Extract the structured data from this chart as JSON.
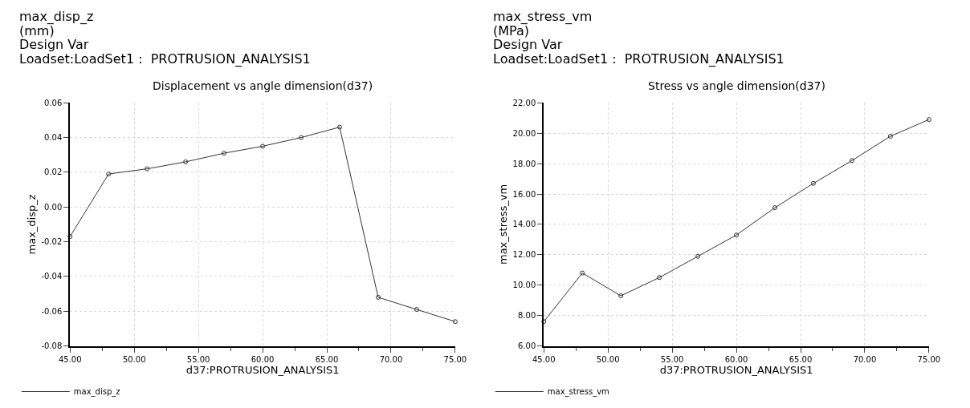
{
  "chart_data": [
    {
      "type": "line",
      "title": "Displacement vs angle dimension(d37)",
      "xlabel": "d37:PROTRUSION_ANALYSIS1",
      "ylabel": "max_disp_z",
      "annotations": [
        "max_disp_z",
        "(mm)",
        "Design Var",
        "Loadset:LoadSet1 :  PROTRUSION_ANALYSIS1"
      ],
      "x": [
        45,
        48,
        51,
        54,
        57,
        60,
        63,
        66,
        69,
        72,
        75
      ],
      "series": [
        {
          "name": "max_disp_z",
          "color": "#333333",
          "values": [
            -0.017,
            0.019,
            0.022,
            0.026,
            0.031,
            0.035,
            0.04,
            0.046,
            -0.052,
            -0.059,
            -0.066
          ]
        }
      ],
      "xlim": [
        45,
        75
      ],
      "ylim": [
        -0.08,
        0.06
      ],
      "xticks": [
        {
          "value": 45,
          "label": "45.00"
        },
        {
          "value": 50,
          "label": "50.00"
        },
        {
          "value": 55,
          "label": "55.00"
        },
        {
          "value": 60,
          "label": "60.00"
        },
        {
          "value": 65,
          "label": "65.00"
        },
        {
          "value": 70,
          "label": "70.00"
        },
        {
          "value": 75,
          "label": "75.00"
        }
      ],
      "yticks": [
        {
          "value": -0.08,
          "label": "-0.08"
        },
        {
          "value": -0.06,
          "label": "-0.06"
        },
        {
          "value": -0.04,
          "label": "-0.04"
        },
        {
          "value": -0.02,
          "label": "-0.02"
        },
        {
          "value": 0,
          "label": "0.00"
        },
        {
          "value": 0.02,
          "label": "0.02"
        },
        {
          "value": 0.04,
          "label": "0.04"
        },
        {
          "value": 0.06,
          "label": "0.06"
        }
      ],
      "grid": true,
      "legend": "bottom left",
      "marker": "circle",
      "line_style": "solid"
    },
    {
      "type": "line",
      "title": "Stress vs angle dimension(d37)",
      "xlabel": "d37:PROTRUSION_ANALYSIS1",
      "ylabel": "max_stress_vm",
      "annotations": [
        "max_stress_vm",
        "(MPa)",
        "Design Var",
        "Loadset:LoadSet1 :  PROTRUSION_ANALYSIS1"
      ],
      "x": [
        45,
        48,
        51,
        54,
        57,
        60,
        63,
        66,
        69,
        72,
        75
      ],
      "series": [
        {
          "name": "max_stress_vm",
          "color": "#333333",
          "values": [
            7.6,
            10.8,
            9.3,
            10.5,
            11.9,
            13.3,
            15.1,
            16.7,
            18.2,
            19.8,
            20.9
          ]
        }
      ],
      "xlim": [
        45,
        75
      ],
      "ylim": [
        6,
        22
      ],
      "xticks": [
        {
          "value": 45,
          "label": "45.00"
        },
        {
          "value": 50,
          "label": "50.00"
        },
        {
          "value": 55,
          "label": "55.00"
        },
        {
          "value": 60,
          "label": "60.00"
        },
        {
          "value": 65,
          "label": "65.00"
        },
        {
          "value": 70,
          "label": "70.00"
        },
        {
          "value": 75,
          "label": "75.00"
        }
      ],
      "yticks": [
        {
          "value": 6,
          "label": "6.00"
        },
        {
          "value": 8,
          "label": "8.00"
        },
        {
          "value": 10,
          "label": "10.00"
        },
        {
          "value": 12,
          "label": "12.00"
        },
        {
          "value": 14,
          "label": "14.00"
        },
        {
          "value": 16,
          "label": "16.00"
        },
        {
          "value": 18,
          "label": "18.00"
        },
        {
          "value": 20,
          "label": "20.00"
        },
        {
          "value": 22,
          "label": "22.00"
        }
      ],
      "grid": true,
      "legend": "bottom left",
      "marker": "circle",
      "line_style": "solid"
    }
  ]
}
